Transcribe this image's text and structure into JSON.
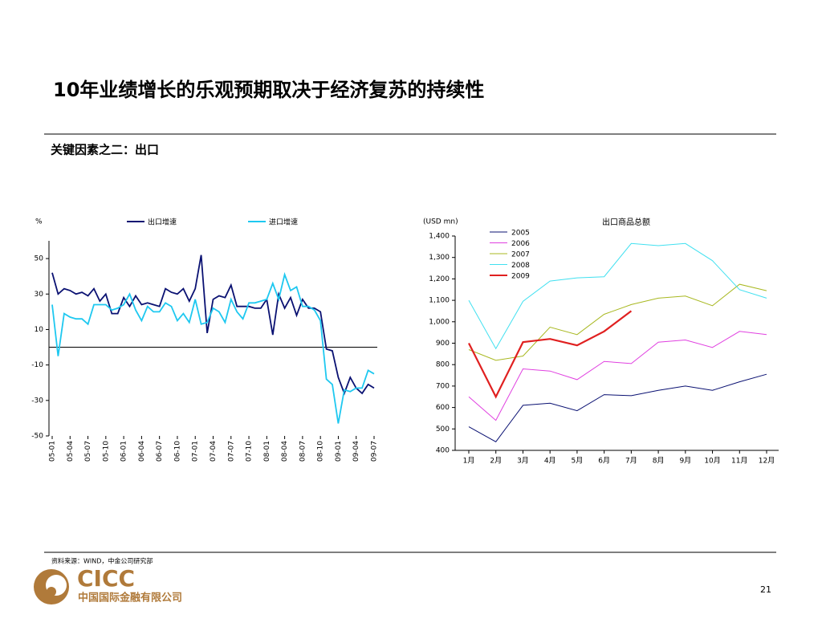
{
  "title": "10年业绩增长的乐观预期取决于经济复苏的持续性",
  "subtitle": "关键因素之二：出口",
  "source": "资料来源：WIND，中金公司研究部",
  "logo_text": "CICC",
  "company": "中国国际金融有限公司",
  "page_number": "21",
  "chart_data": [
    {
      "type": "line",
      "y_label": "%",
      "categories": [
        "05-01",
        null,
        null,
        "05-04",
        null,
        null,
        "05-07",
        null,
        null,
        "05-10",
        null,
        null,
        "06-01",
        null,
        null,
        "06-04",
        null,
        null,
        "06-07",
        null,
        null,
        "06-10",
        null,
        null,
        "07-01",
        null,
        null,
        "07-04",
        null,
        null,
        "07-07",
        null,
        null,
        "07-10",
        null,
        null,
        "08-01",
        null,
        null,
        "08-04",
        null,
        null,
        "08-07",
        null,
        null,
        "08-10",
        null,
        null,
        "09-01",
        null,
        null,
        "09-04",
        null,
        null,
        "09-07"
      ],
      "ylim": [
        -50,
        60
      ],
      "yticks": [
        50,
        30,
        10,
        -10,
        -30,
        -50
      ],
      "grid": false,
      "legend": "top",
      "series": [
        {
          "name": "出口增速",
          "color": "#0a1172",
          "values": [
            42,
            30,
            33,
            32,
            30,
            31,
            29,
            33,
            26,
            30,
            19,
            19,
            28,
            23,
            29,
            24,
            25,
            24,
            23,
            33,
            31,
            30,
            33,
            26,
            33,
            52,
            8,
            27,
            29,
            28,
            35,
            23,
            23,
            23,
            22,
            22,
            27,
            7,
            30,
            22,
            28,
            18,
            27,
            22,
            22,
            20,
            -1,
            -2,
            -17,
            -26,
            -17,
            -23,
            -26,
            -21,
            -23
          ]
        },
        {
          "name": "进口增速",
          "color": "#1ec8f0",
          "values": [
            24,
            -5,
            19,
            17,
            16,
            16,
            13,
            24,
            24,
            24,
            21,
            22,
            24,
            30,
            21,
            15,
            23,
            20,
            20,
            25,
            23,
            15,
            19,
            14,
            27,
            13,
            14,
            22,
            20,
            14,
            27,
            20,
            16,
            25,
            25,
            26,
            27,
            36,
            27,
            41,
            32,
            34,
            23,
            23,
            21,
            15,
            -18,
            -21,
            -43,
            -24,
            -25,
            -23,
            -23,
            -13,
            -15
          ]
        }
      ]
    },
    {
      "type": "line",
      "title": "出口商品总额",
      "y_label": "(USD mn)",
      "categories": [
        "1月",
        "2月",
        "3月",
        "4月",
        "5月",
        "6月",
        "7月",
        "8月",
        "9月",
        "10月",
        "11月",
        "12月"
      ],
      "ylim": [
        400,
        1400
      ],
      "yticks": [
        400,
        500,
        600,
        700,
        800,
        900,
        {
          "value": 1000,
          "label": "1,000"
        },
        {
          "value": 1100,
          "label": "1,100"
        },
        {
          "value": 1200,
          "label": "1,200"
        },
        {
          "value": 1300,
          "label": "1,300"
        },
        {
          "value": 1400,
          "label": "1,400"
        }
      ],
      "grid": false,
      "legend": "top-left",
      "series": [
        {
          "name": "2005",
          "color": "#0a1172",
          "values": [
            510,
            440,
            610,
            620,
            585,
            660,
            655,
            680,
            700,
            680,
            720,
            755
          ]
        },
        {
          "name": "2006",
          "color": "#e040e0",
          "values": [
            650,
            540,
            780,
            770,
            730,
            815,
            805,
            905,
            915,
            880,
            955,
            940
          ]
        },
        {
          "name": "2007",
          "color": "#a8b820",
          "values": [
            870,
            820,
            840,
            975,
            940,
            1035,
            1080,
            1110,
            1120,
            1075,
            1175,
            1145
          ]
        },
        {
          "name": "2008",
          "color": "#40e0f0",
          "values": [
            1100,
            875,
            1095,
            1190,
            1205,
            1210,
            1365,
            1355,
            1365,
            1285,
            1150,
            1110
          ]
        },
        {
          "name": "2009",
          "color": "#e02020",
          "values": [
            900,
            650,
            905,
            920,
            890,
            955,
            1050,
            null,
            null,
            null,
            null,
            null
          ]
        }
      ]
    }
  ]
}
